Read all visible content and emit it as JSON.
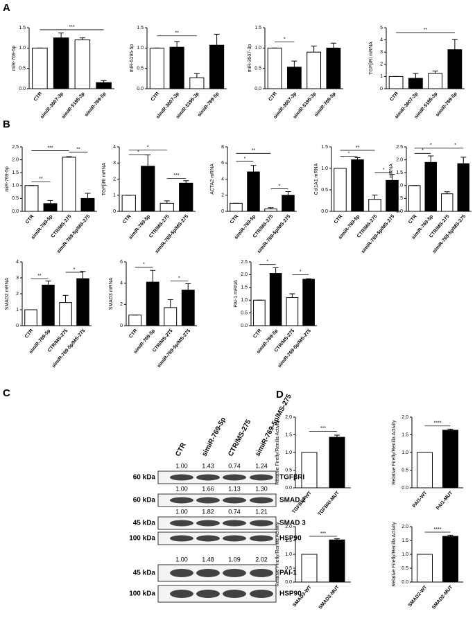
{
  "panel_labels": [
    "A",
    "B",
    "C",
    "D"
  ],
  "chart_data": [
    {
      "type": "bar",
      "ylabel": "miR-769-5p",
      "categories": [
        "CTR",
        "simiR-3607-3p",
        "simiR-5195-3p",
        "simiR-769-5p"
      ],
      "values": [
        1.0,
        1.25,
        1.2,
        0.15
      ],
      "errors": [
        0,
        0.12,
        0.05,
        0.05
      ],
      "colors": [
        "#ffffff",
        "#000000",
        "#ffffff",
        "#000000"
      ],
      "ylim": [
        0,
        1.5
      ],
      "yticks": [
        {
          "value": 0,
          "label": "0.0"
        },
        0.5,
        {
          "value": 1,
          "label": "1.0"
        },
        1.5
      ],
      "annotations": [
        {
          "label": "***",
          "between": [
            "CTR",
            "simiR-769-5p"
          ],
          "y": 1.45
        }
      ]
    },
    {
      "type": "bar",
      "ylabel": "miR-5195-5p",
      "categories": [
        "CTR",
        "simiR-3607-3p",
        "simiR-5195-3p",
        "simiR-769-5p"
      ],
      "values": [
        1.0,
        1.02,
        0.27,
        1.07
      ],
      "errors": [
        0,
        0.14,
        0.1,
        0.27
      ],
      "colors": [
        "#ffffff",
        "#000000",
        "#ffffff",
        "#000000"
      ],
      "ylim": [
        0,
        1.5
      ],
      "yticks": [
        {
          "value": 0,
          "label": "0.0"
        },
        0.5,
        {
          "value": 1,
          "label": "1.0"
        },
        1.5
      ],
      "annotations": [
        {
          "label": "**",
          "between": [
            "CTR",
            "simiR-5195-3p"
          ],
          "y": 1.3
        }
      ]
    },
    {
      "type": "bar",
      "ylabel": "miR-3607-3p",
      "categories": [
        "CTR",
        "simiR-3607-3p",
        "simiR-5195-3p",
        "simiR-769-5p"
      ],
      "values": [
        1.0,
        0.53,
        0.9,
        1.0
      ],
      "errors": [
        0,
        0.15,
        0.15,
        0.12
      ],
      "colors": [
        "#ffffff",
        "#000000",
        "#ffffff",
        "#000000"
      ],
      "ylim": [
        0,
        1.5
      ],
      "yticks": [
        {
          "value": 0,
          "label": "0.0"
        },
        0.5,
        {
          "value": 1,
          "label": "1.0"
        },
        1.5
      ],
      "annotations": [
        {
          "label": "*",
          "between": [
            "CTR",
            "simiR-3607-3p"
          ],
          "y": 1.15
        }
      ]
    },
    {
      "type": "bar",
      "ylabel": "TGFβRI mRNA",
      "categories": [
        "CTR",
        "simiR-3607-3p",
        "simiR-5195-3p",
        "simiR-769-5p"
      ],
      "values": [
        1.0,
        0.85,
        1.25,
        3.2
      ],
      "errors": [
        0,
        0.4,
        0.2,
        0.85
      ],
      "colors": [
        "#ffffff",
        "#000000",
        "#ffffff",
        "#000000"
      ],
      "ylim": [
        0,
        5
      ],
      "yticks": [
        0,
        1,
        2,
        3,
        4,
        5
      ],
      "annotations": [
        {
          "label": "**",
          "between": [
            "CTR",
            "simiR-769-5p"
          ],
          "y": 4.6
        }
      ]
    },
    {
      "type": "bar",
      "ylabel": "miR-769-5p",
      "categories": [
        "CTR",
        "simiR-769-5p",
        "CTR/MS-275",
        "simiR-769-5p/MS-275"
      ],
      "values": [
        1.0,
        0.3,
        2.1,
        0.5
      ],
      "errors": [
        0,
        0.12,
        0.02,
        0.2
      ],
      "colors": [
        "#ffffff",
        "#000000",
        "#ffffff",
        "#000000"
      ],
      "ylim": [
        0,
        2.5
      ],
      "yticks": [
        {
          "value": 0,
          "label": "0.0"
        },
        0.5,
        {
          "value": 1,
          "label": "1.0"
        },
        1.5,
        {
          "value": 2,
          "label": "2.0"
        },
        2.5
      ],
      "annotations": [
        {
          "label": "**",
          "between": [
            "CTR",
            "simiR-769-5p"
          ],
          "y": 1.15
        },
        {
          "label": "***",
          "between": [
            "CTR",
            "CTR/MS-275"
          ],
          "y": 2.35
        },
        {
          "label": "**",
          "between": [
            "CTR/MS-275",
            "simiR-769-5p/MS-275"
          ],
          "y": 2.3
        }
      ]
    },
    {
      "type": "bar",
      "ylabel": "TGFβRI mRNA",
      "categories": [
        "CTR",
        "simiR-769-5p",
        "CTR/MS-275",
        "simiR-769-5p/MS-275"
      ],
      "values": [
        1.0,
        2.8,
        0.5,
        1.75
      ],
      "errors": [
        0,
        0.7,
        0.15,
        0.15
      ],
      "colors": [
        "#ffffff",
        "#000000",
        "#ffffff",
        "#000000"
      ],
      "ylim": [
        0,
        4
      ],
      "yticks": [
        0,
        1,
        2,
        3,
        4
      ],
      "annotations": [
        {
          "label": "*",
          "between": [
            "CTR",
            "simiR-769-5p"
          ],
          "y": 3.5
        },
        {
          "label": "*",
          "between": [
            "CTR",
            "CTR/MS-275"
          ],
          "y": 3.8
        },
        {
          "label": "***",
          "between": [
            "CTR/MS-275",
            "simiR-769-5p/MS-275"
          ],
          "y": 2.05
        }
      ]
    },
    {
      "type": "bar",
      "ylabel": "ACTA2 mRNA",
      "categories": [
        "CTR",
        "simiR-769-5p",
        "CTR/MS-275",
        "simiR-769-5p/MS-275"
      ],
      "values": [
        1.0,
        4.9,
        0.3,
        2.0
      ],
      "errors": [
        0,
        0.8,
        0.15,
        0.45
      ],
      "colors": [
        "#ffffff",
        "#000000",
        "#ffffff",
        "#000000"
      ],
      "ylim": [
        0,
        8
      ],
      "yticks": [
        0,
        2,
        4,
        6,
        8
      ],
      "annotations": [
        {
          "label": "*",
          "between": [
            "CTR",
            "simiR-769-5p"
          ],
          "y": 6.2
        },
        {
          "label": "**",
          "between": [
            "CTR",
            "CTR/MS-275"
          ],
          "y": 7.2
        },
        {
          "label": "*",
          "between": [
            "CTR/MS-275",
            "simiR-769-5p/MS-275"
          ],
          "y": 2.8
        }
      ]
    },
    {
      "type": "bar",
      "ylabel": "Col1A1 mRNA",
      "categories": [
        "CTR",
        "simiR-769-5p",
        "CTR/MS-275",
        "simiR-769-5p/MS-275"
      ],
      "values": [
        1.0,
        1.2,
        0.28,
        0.72
      ],
      "errors": [
        0,
        0.05,
        0.1,
        0.14
      ],
      "colors": [
        "#ffffff",
        "#000000",
        "#ffffff",
        "#000000"
      ],
      "ylim": [
        0,
        1.5
      ],
      "yticks": [
        {
          "value": 0,
          "label": "0.0"
        },
        0.5,
        {
          "value": 1,
          "label": "1.0"
        },
        1.5
      ],
      "annotations": [
        {
          "label": "*",
          "between": [
            "CTR",
            "simiR-769-5p"
          ],
          "y": 1.28
        },
        {
          "label": "**",
          "between": [
            "CTR",
            "CTR/MS-275"
          ],
          "y": 1.42
        },
        {
          "label": "*",
          "between": [
            "CTR/MS-275",
            "simiR-769-5p/MS-275"
          ],
          "y": 0.9
        }
      ]
    },
    {
      "type": "bar",
      "ylabel": "TGFβ1 mRNA",
      "categories": [
        "CTR",
        "simiR-769-5p",
        "CTR/MS-275",
        "simiR-769-5p/MS-275"
      ],
      "values": [
        1.0,
        1.9,
        0.68,
        1.85
      ],
      "errors": [
        0,
        0.25,
        0.08,
        0.25
      ],
      "colors": [
        "#ffffff",
        "#000000",
        "#ffffff",
        "#000000"
      ],
      "ylim": [
        0,
        2.5
      ],
      "yticks": [
        {
          "value": 0,
          "label": "0.0"
        },
        0.5,
        {
          "value": 1,
          "label": "1.0"
        },
        1.5,
        {
          "value": 2,
          "label": "2.0"
        },
        2.5
      ],
      "annotations": [
        {
          "label": "*",
          "between": [
            "CTR",
            "simiR-769-5p"
          ],
          "y": 2.25
        },
        {
          "label": "*",
          "between": [
            "CTR",
            "CTR/MS-275"
          ],
          "y": 2.45
        },
        {
          "label": "*",
          "between": [
            "CTR/MS-275",
            "simiR-769-5p/MS-275"
          ],
          "y": 2.45
        }
      ]
    },
    {
      "type": "bar",
      "ylabel": "SMAD2 mRNA",
      "categories": [
        "CTR",
        "simiR-769-5p",
        "CTR/MS-275",
        "simiR-769-5p/MS-275"
      ],
      "values": [
        1.0,
        2.55,
        1.45,
        2.95
      ],
      "errors": [
        0,
        0.25,
        0.45,
        0.45
      ],
      "colors": [
        "#ffffff",
        "#000000",
        "#ffffff",
        "#000000"
      ],
      "ylim": [
        0,
        4
      ],
      "yticks": [
        0,
        1,
        2,
        3,
        4
      ],
      "annotations": [
        {
          "label": "**",
          "between": [
            "CTR",
            "simiR-769-5p"
          ],
          "y": 2.95
        },
        {
          "label": "*",
          "between": [
            "CTR/MS-275",
            "simiR-769-5p/MS-275"
          ],
          "y": 3.35
        }
      ]
    },
    {
      "type": "bar",
      "ylabel": "SMAD3 mRNA",
      "categories": [
        "CTR",
        "simiR-769-5p",
        "CTR/MS-275",
        "simiR-769-5p/MS-275"
      ],
      "values": [
        1.0,
        4.1,
        1.7,
        3.35
      ],
      "errors": [
        0,
        1.1,
        0.75,
        0.6
      ],
      "colors": [
        "#ffffff",
        "#000000",
        "#ffffff",
        "#000000"
      ],
      "ylim": [
        0,
        6
      ],
      "yticks": [
        0,
        2,
        4,
        6
      ],
      "annotations": [
        {
          "label": "*",
          "between": [
            "CTR",
            "simiR-769-5p"
          ],
          "y": 5.5
        },
        {
          "label": "*",
          "between": [
            "CTR/MS-275",
            "simiR-769-5p/MS-275"
          ],
          "y": 4.2
        }
      ]
    },
    {
      "type": "bar",
      "ylabel": "PAI-1 mRNA",
      "categories": [
        "CTR",
        "simiR-769-5p",
        "CTR/MS-275",
        "simiR-769-5p/MS-275"
      ],
      "values": [
        1.0,
        2.05,
        1.1,
        1.82
      ],
      "errors": [
        0,
        0.22,
        0.15,
        0.02
      ],
      "colors": [
        "#ffffff",
        "#000000",
        "#ffffff",
        "#000000"
      ],
      "ylim": [
        0,
        2.5
      ],
      "yticks": [
        {
          "value": 0,
          "label": "0.0"
        },
        0.5,
        {
          "value": 1,
          "label": "1.0"
        },
        1.5,
        {
          "value": 2,
          "label": "2.0"
        },
        2.5
      ],
      "annotations": [
        {
          "label": "*",
          "between": [
            "CTR",
            "simiR-769-5p"
          ],
          "y": 2.4
        },
        {
          "label": "*",
          "between": [
            "CTR/MS-275",
            "simiR-769-5p/MS-275"
          ],
          "y": 2.0
        }
      ]
    },
    {
      "type": "bar",
      "ylabel": "Relative Firefly/Renilla Activity",
      "categories": [
        "TGFBRI-WT",
        "TGFBRI-MUT"
      ],
      "values": [
        1.0,
        1.43
      ],
      "errors": [
        0,
        0.06
      ],
      "colors": [
        "#ffffff",
        "#000000"
      ],
      "ylim": [
        0,
        2
      ],
      "yticks": [
        {
          "value": 0,
          "label": "0.0"
        },
        0.5,
        {
          "value": 1,
          "label": "1.0"
        },
        1.5,
        {
          "value": 2,
          "label": "2.0"
        }
      ],
      "annotations": [
        {
          "label": "***",
          "between": [
            "TGFBRI-WT",
            "TGFBRI-MUT"
          ],
          "y": 1.6
        }
      ]
    },
    {
      "type": "bar",
      "ylabel": "Relative Firefly/Renilla Activity",
      "categories": [
        "PAI1-WT",
        "PAI1-MUT"
      ],
      "values": [
        1.0,
        1.63
      ],
      "errors": [
        0,
        0.03
      ],
      "colors": [
        "#ffffff",
        "#000000"
      ],
      "ylim": [
        0,
        2
      ],
      "yticks": [
        {
          "value": 0,
          "label": "0.0"
        },
        0.5,
        {
          "value": 1,
          "label": "1.0"
        },
        1.5,
        {
          "value": 2,
          "label": "2.0"
        }
      ],
      "annotations": [
        {
          "label": "****",
          "between": [
            "PAI1-WT",
            "PAI1-MUT"
          ],
          "y": 1.75
        }
      ]
    },
    {
      "type": "bar",
      "ylabel": "Relative Firefly/Renilla Activity",
      "categories": [
        "SMAD3-WT",
        "SMAD3-MUT"
      ],
      "values": [
        1.0,
        1.52
      ],
      "errors": [
        0,
        0.04
      ],
      "colors": [
        "#ffffff",
        "#000000"
      ],
      "ylim": [
        0,
        2
      ],
      "yticks": [
        {
          "value": 0,
          "label": "0.0"
        },
        0.5,
        {
          "value": 1,
          "label": "1.0"
        },
        1.5,
        {
          "value": 2,
          "label": "2.0"
        }
      ],
      "annotations": [
        {
          "label": "***",
          "between": [
            "SMAD3-WT",
            "SMAD3-MUT"
          ],
          "y": 1.65
        }
      ]
    },
    {
      "type": "bar",
      "ylabel": "Relative Firefly/Renilla Activity",
      "categories": [
        "SMAD2-WT",
        "SMAD2-MUT"
      ],
      "values": [
        1.0,
        1.65
      ],
      "errors": [
        0,
        0.04
      ],
      "colors": [
        "#ffffff",
        "#000000"
      ],
      "ylim": [
        0,
        2
      ],
      "yticks": [
        {
          "value": 0,
          "label": "0.0"
        },
        0.5,
        {
          "value": 1,
          "label": "1.0"
        },
        1.5,
        {
          "value": 2,
          "label": "2.0"
        }
      ],
      "annotations": [
        {
          "label": "****",
          "between": [
            "SMAD2-WT",
            "SMAD2-MUT"
          ],
          "y": 1.8
        }
      ]
    }
  ],
  "blot": {
    "lanes": [
      "CTR",
      "simiR-769-5p",
      "CTR/MS-275",
      "simiR-769-5p/MS-275"
    ],
    "groups": [
      [
        {
          "marker": "60 kDa",
          "protein": "TGFβRI",
          "quantification": [
            "1.00",
            "1.43",
            "0.74",
            "1.24"
          ]
        },
        {
          "marker": "60 kDa",
          "protein": "SMAD 2",
          "quantification": [
            "1.00",
            "1.66",
            "1.13",
            "1.30"
          ]
        },
        {
          "marker": "45 kDa",
          "protein": "SMAD 3",
          "quantification": [
            "1.00",
            "1.82",
            "0.74",
            "1.21"
          ]
        },
        {
          "marker": "100 kDa",
          "protein": "HSP90"
        }
      ],
      [
        {
          "marker": "45 kDa",
          "protein": "PAI-1",
          "quantification": [
            "1.00",
            "1.48",
            "1.09",
            "2.02"
          ]
        },
        {
          "marker": "100 kDa",
          "protein": "HSP90"
        }
      ]
    ]
  }
}
